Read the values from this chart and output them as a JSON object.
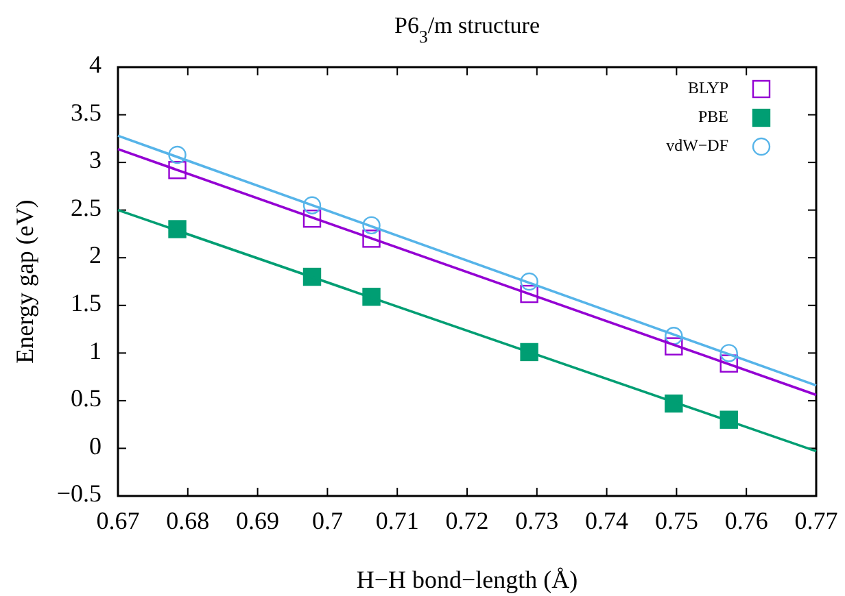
{
  "chart_data": {
    "type": "scatter",
    "title": "P6$_{3}$/m structure",
    "xlabel": "H−H bond−length (Å)",
    "ylabel": "Energy gap (eV)",
    "xlim": [
      0.67,
      0.77
    ],
    "xticks": [
      0.67,
      0.68,
      0.69,
      {
        "value": 0.7,
        "label": "0.7"
      },
      0.71,
      0.72,
      0.73,
      0.74,
      0.75,
      0.76,
      0.77
    ],
    "ylim": [
      -0.5,
      4
    ],
    "yticks": [
      {
        "value": -0.5,
        "label": "−0.5"
      },
      0,
      0.5,
      1,
      1.5,
      2,
      2.5,
      3,
      3.5,
      4
    ],
    "grid": false,
    "legend": "top right",
    "series": [
      {
        "name": "BLYP",
        "marker": "square",
        "color": "#9400d3",
        "x": [
          0.6785,
          0.6978,
          0.7063,
          0.7289,
          0.7496,
          0.7575
        ],
        "values": [
          2.92,
          2.41,
          2.2,
          1.62,
          1.07,
          0.89
        ]
      },
      {
        "name": "PBE",
        "marker": "square",
        "color": "#009e73",
        "x": [
          0.6785,
          0.6978,
          0.7063,
          0.7289,
          0.7496,
          0.7575
        ],
        "values": [
          2.3,
          1.8,
          1.59,
          1.01,
          0.47,
          0.3
        ]
      },
      {
        "name": "vdW−DF",
        "marker": "circle",
        "color": "#56b4e9",
        "x": [
          0.6785,
          0.6978,
          0.7063,
          0.7289,
          0.7496,
          0.7575
        ],
        "values": [
          3.08,
          2.55,
          2.34,
          1.75,
          1.18,
          1.0
        ]
      },
      {
        "type": "line",
        "color": "#9400d3",
        "x": [
          0.67,
          0.77
        ],
        "values": [
          3.14,
          0.56
        ]
      },
      {
        "type": "line",
        "color": "#009e73",
        "x": [
          0.67,
          0.77
        ],
        "values": [
          2.5,
          -0.03
        ]
      },
      {
        "type": "line",
        "color": "#56b4e9",
        "x": [
          0.67,
          0.77
        ],
        "values": [
          3.28,
          0.66
        ]
      }
    ]
  }
}
